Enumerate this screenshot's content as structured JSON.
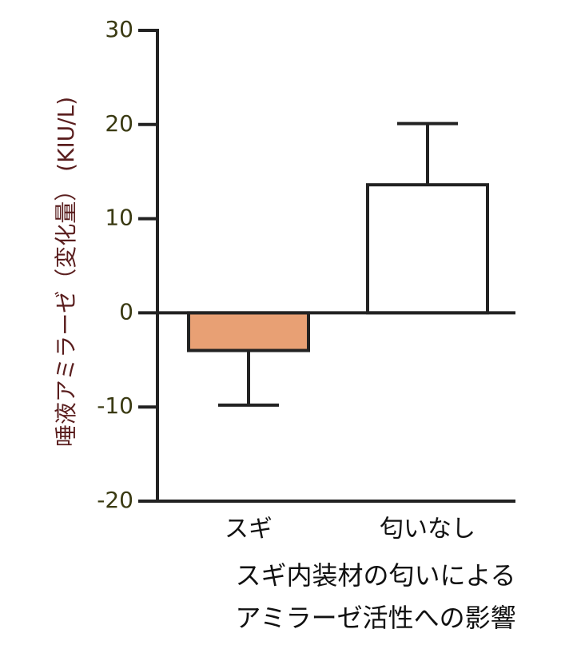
{
  "chart_data": {
    "type": "bar",
    "title": [
      "スギ内装材の匂いによる",
      "アミラーゼ活性への影響"
    ],
    "y_label": "唾液アミラーゼ（変化量） (KIU/L)",
    "categories": [
      "スギ",
      "匂いなし"
    ],
    "series": [
      {
        "values": [
          -4.0,
          13.6
        ],
        "errors": [
          5.8,
          6.5
        ],
        "colors": [
          "#e8a074",
          "#ffffff"
        ]
      }
    ],
    "ylim": [
      -20,
      30
    ],
    "yticks": [
      -20,
      -10,
      0,
      10,
      20,
      30
    ]
  }
}
